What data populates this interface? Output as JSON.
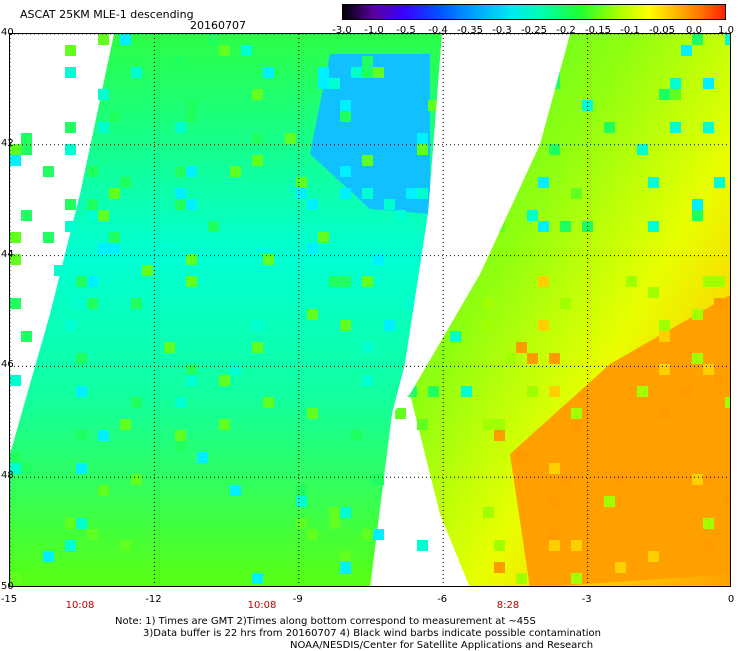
{
  "title": "ASCAT 25KM MLE-1 descending",
  "date": "20160707",
  "colorbar": {
    "labels": [
      "-3.0",
      "-1.0",
      "-0.5",
      "-0.4",
      "-0.35",
      "-0.3",
      "-0.25",
      "-0.2",
      "-0.15",
      "-0.1",
      "-0.05",
      "0.0",
      "1.0"
    ]
  },
  "map": {
    "lat_labels": [
      "40",
      "42",
      "44",
      "46",
      "48",
      "50"
    ],
    "lon_labels": [
      "-15",
      "-12",
      "-9",
      "-6",
      "-3",
      "0"
    ],
    "time_labels": [
      "10:08",
      "10:08",
      "8:28"
    ]
  },
  "notes": {
    "line1": "Note: 1) Times are GMT 2)Times along bottom correspond to measurement at ~45S",
    "line2": "3)Data buffer is 22 hrs from 20160707 4) Black wind barbs indicate possible contamination",
    "line3": "NOAA/NESDIS/Center for Satellite Applications and Research"
  }
}
